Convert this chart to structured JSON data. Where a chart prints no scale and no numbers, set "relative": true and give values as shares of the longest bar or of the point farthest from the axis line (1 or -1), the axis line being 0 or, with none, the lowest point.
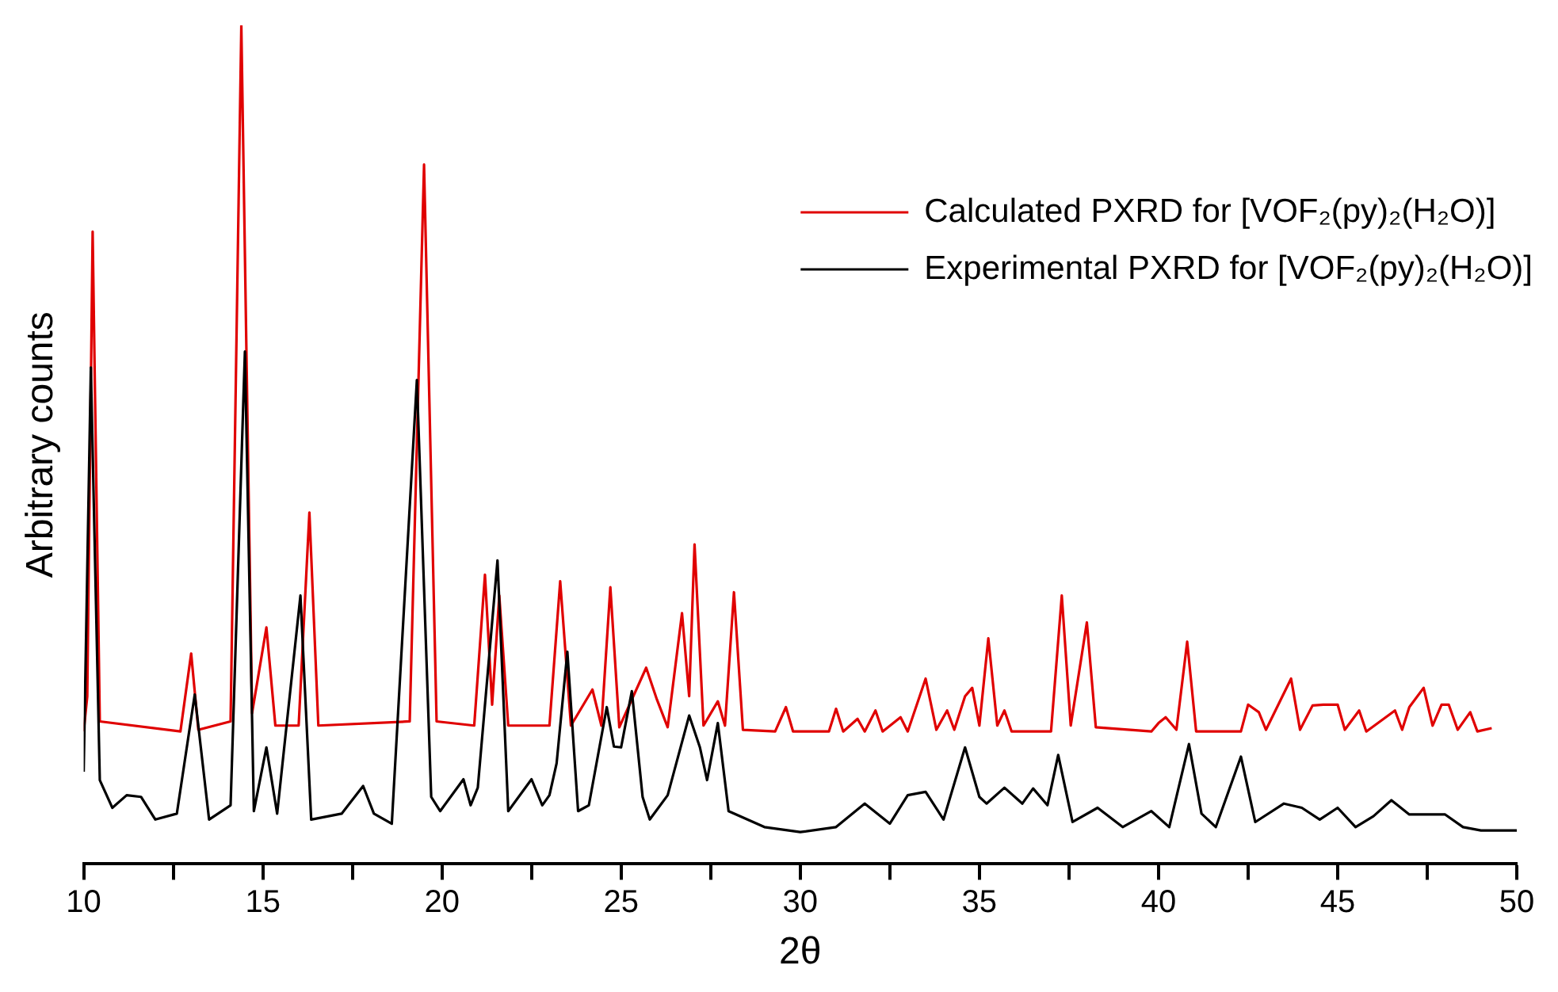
{
  "chart_data": {
    "type": "line",
    "relative": true,
    "xlabel": "2θ",
    "ylabel": "Arbitrary counts",
    "legend": "top right",
    "grid": false,
    "marker": "none",
    "line_style": "solid",
    "xlim": [
      10,
      50
    ],
    "xticks": [
      10,
      {
        "value": 12.5,
        "label": null
      },
      15,
      {
        "value": 17.5,
        "label": null
      },
      20,
      {
        "value": 22.5,
        "label": null
      },
      25,
      {
        "value": 27.5,
        "label": null
      },
      30,
      {
        "value": 32.5,
        "label": null
      },
      35,
      {
        "value": 37.5,
        "label": null
      },
      40,
      {
        "value": 42.5,
        "label": null
      },
      45,
      {
        "value": 47.5,
        "label": null
      },
      50
    ],
    "series": [
      {
        "name": "Calculated PXRD for [VOF₂(py)₂(H₂O)]",
        "color": "#e00000",
        "x": [
          10.0,
          10.1,
          10.25,
          10.45,
          12.7,
          13.0,
          13.2,
          14.1,
          14.4,
          14.7,
          15.1,
          15.35,
          16.0,
          16.3,
          16.55,
          19.1,
          19.5,
          19.85,
          20.9,
          21.2,
          21.4,
          21.6,
          21.85,
          23.0,
          23.3,
          23.6,
          24.2,
          24.45,
          24.7,
          24.95,
          25.7,
          26.0,
          26.3,
          26.7,
          26.9,
          27.05,
          27.3,
          27.7,
          27.9,
          28.15,
          28.4,
          29.3,
          29.6,
          29.8,
          30.8,
          31.0,
          31.2,
          31.6,
          31.8,
          32.1,
          32.3,
          32.8,
          33.0,
          33.5,
          33.8,
          34.1,
          34.3,
          34.6,
          34.8,
          35.0,
          35.25,
          35.5,
          35.7,
          35.9,
          37.0,
          37.3,
          37.55,
          38.0,
          38.25,
          39.8,
          40.0,
          40.2,
          40.5,
          40.8,
          41.05,
          42.3,
          42.5,
          42.8,
          43.0,
          43.7,
          43.95,
          44.3,
          44.6,
          45.0,
          45.2,
          45.6,
          45.8,
          46.6,
          46.8,
          47.0,
          47.4,
          47.65,
          47.9,
          48.1,
          48.35,
          48.7,
          48.9,
          49.3
        ],
        "values": [
          0.158,
          0.2,
          0.754,
          0.17,
          0.158,
          0.251,
          0.16,
          0.17,
          1,
          0.18,
          0.282,
          0.165,
          0.165,
          0.419,
          0.165,
          0.17,
          0.834,
          0.17,
          0.165,
          0.345,
          0.19,
          0.32,
          0.165,
          0.165,
          0.337,
          0.165,
          0.208,
          0.165,
          0.33,
          0.163,
          0.234,
          0.196,
          0.163,
          0.299,
          0.2,
          0.381,
          0.165,
          0.194,
          0.165,
          0.324,
          0.16,
          0.158,
          0.187,
          0.158,
          0.158,
          0.185,
          0.158,
          0.173,
          0.158,
          0.183,
          0.158,
          0.175,
          0.158,
          0.221,
          0.16,
          0.183,
          0.16,
          0.2,
          0.21,
          0.165,
          0.269,
          0.165,
          0.183,
          0.158,
          0.158,
          0.32,
          0.165,
          0.288,
          0.163,
          0.158,
          0.168,
          0.175,
          0.16,
          0.265,
          0.158,
          0.158,
          0.19,
          0.181,
          0.16,
          0.221,
          0.16,
          0.189,
          0.19,
          0.19,
          0.16,
          0.183,
          0.158,
          0.183,
          0.16,
          0.187,
          0.21,
          0.165,
          0.19,
          0.19,
          0.16,
          0.181,
          0.158,
          0.162
        ]
      },
      {
        "name": "Experimental PXRD for [VOF₂(py)₂(H₂O)]",
        "color": "#000000",
        "x": [
          10.0,
          10.2,
          10.45,
          10.8,
          11.2,
          11.6,
          12.0,
          12.6,
          13.1,
          13.5,
          14.1,
          14.5,
          14.75,
          15.1,
          15.4,
          16.05,
          16.35,
          17.2,
          17.8,
          18.1,
          18.6,
          19.3,
          19.7,
          19.95,
          20.6,
          20.8,
          21.0,
          21.55,
          21.85,
          22.5,
          22.8,
          23.0,
          23.2,
          23.5,
          23.8,
          24.1,
          24.6,
          24.8,
          25.0,
          25.3,
          25.6,
          25.8,
          26.3,
          26.9,
          27.2,
          27.4,
          27.7,
          28.0,
          29.0,
          30.0,
          31.0,
          31.8,
          32.5,
          33.0,
          33.5,
          34.0,
          34.6,
          35.0,
          35.2,
          35.7,
          36.2,
          36.5,
          36.9,
          37.2,
          37.6,
          38.3,
          39.0,
          39.8,
          40.3,
          40.85,
          41.2,
          41.6,
          42.3,
          42.7,
          43.5,
          44.0,
          44.5,
          45.0,
          45.5,
          46.0,
          46.5,
          47.0,
          48.0,
          48.5,
          49.0,
          50.0
        ],
        "values": [
          0.11,
          0.592,
          0.1,
          0.067,
          0.082,
          0.08,
          0.053,
          0.06,
          0.202,
          0.053,
          0.07,
          0.611,
          0.063,
          0.139,
          0.06,
          0.32,
          0.053,
          0.06,
          0.093,
          0.06,
          0.048,
          0.577,
          0.08,
          0.063,
          0.101,
          0.07,
          0.091,
          0.362,
          0.063,
          0.101,
          0.07,
          0.082,
          0.12,
          0.253,
          0.063,
          0.07,
          0.187,
          0.14,
          0.139,
          0.206,
          0.08,
          0.053,
          0.082,
          0.177,
          0.139,
          0.1,
          0.168,
          0.063,
          0.044,
          0.038,
          0.044,
          0.072,
          0.048,
          0.082,
          0.086,
          0.053,
          0.139,
          0.08,
          0.072,
          0.091,
          0.072,
          0.09,
          0.07,
          0.13,
          0.05,
          0.067,
          0.044,
          0.063,
          0.044,
          0.143,
          0.06,
          0.044,
          0.128,
          0.05,
          0.072,
          0.067,
          0.053,
          0.067,
          0.044,
          0.057,
          0.076,
          0.059,
          0.059,
          0.044,
          0.04,
          0.04
        ]
      }
    ]
  }
}
